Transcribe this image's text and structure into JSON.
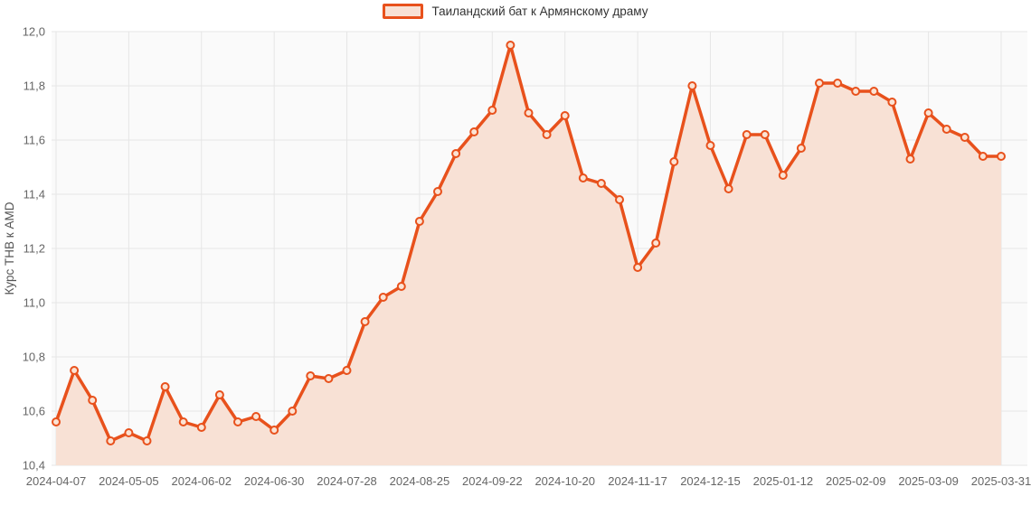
{
  "legend": {
    "label": "Таиландский бат к Армянскому драму"
  },
  "chart_data": {
    "type": "area",
    "title": "",
    "xlabel": "",
    "ylabel": "Курс THB к AMD",
    "series_name": "Таиландский бат к Армянскому драму",
    "ylim": [
      10.4,
      12.0
    ],
    "grid": true,
    "legend_position": "top-center",
    "decimal_separator": ",",
    "y_tick_values": [
      10.4,
      10.6,
      10.8,
      11.0,
      11.2,
      11.4,
      11.6,
      11.8,
      12.0
    ],
    "y_tick_labels": [
      "10,4",
      "10,6",
      "10,8",
      "11,0",
      "11,2",
      "11,4",
      "11,6",
      "11,8",
      "12,0"
    ],
    "x_tick_indices": [
      0,
      4,
      8,
      12,
      16,
      20,
      24,
      28,
      32,
      36,
      40,
      44,
      48,
      52
    ],
    "x_tick_labels": [
      "2024-04-07",
      "2024-05-05",
      "2024-06-02",
      "2024-06-30",
      "2024-07-28",
      "2024-08-25",
      "2024-09-22",
      "2024-10-20",
      "2024-11-17",
      "2024-12-15",
      "2025-01-12",
      "2025-02-09",
      "2025-03-09",
      "2025-03-31"
    ],
    "x": [
      "2024-04-07",
      "2024-04-14",
      "2024-04-21",
      "2024-04-28",
      "2024-05-05",
      "2024-05-12",
      "2024-05-19",
      "2024-05-26",
      "2024-06-02",
      "2024-06-09",
      "2024-06-16",
      "2024-06-23",
      "2024-06-30",
      "2024-07-07",
      "2024-07-14",
      "2024-07-21",
      "2024-07-28",
      "2024-08-04",
      "2024-08-11",
      "2024-08-18",
      "2024-08-25",
      "2024-09-01",
      "2024-09-08",
      "2024-09-15",
      "2024-09-22",
      "2024-09-29",
      "2024-10-06",
      "2024-10-13",
      "2024-10-20",
      "2024-10-27",
      "2024-11-03",
      "2024-11-10",
      "2024-11-17",
      "2024-11-24",
      "2024-12-01",
      "2024-12-08",
      "2024-12-15",
      "2024-12-22",
      "2024-12-29",
      "2025-01-05",
      "2025-01-12",
      "2025-01-19",
      "2025-01-26",
      "2025-02-02",
      "2025-02-09",
      "2025-02-16",
      "2025-02-23",
      "2025-03-02",
      "2025-03-09",
      "2025-03-16",
      "2025-03-23",
      "2025-03-30",
      "2025-03-31"
    ],
    "values": [
      10.56,
      10.75,
      10.64,
      10.49,
      10.52,
      10.49,
      10.69,
      10.56,
      10.54,
      10.66,
      10.56,
      10.58,
      10.53,
      10.6,
      10.73,
      10.72,
      10.75,
      10.93,
      11.02,
      11.06,
      11.3,
      11.41,
      11.55,
      11.63,
      11.71,
      11.95,
      11.7,
      11.62,
      11.69,
      11.46,
      11.44,
      11.38,
      11.13,
      11.22,
      11.52,
      11.8,
      11.58,
      11.42,
      11.62,
      11.62,
      11.47,
      11.57,
      11.81,
      11.81,
      11.78,
      11.78,
      11.74,
      11.53,
      11.7,
      11.64,
      11.61,
      11.54,
      11.54
    ],
    "colors": {
      "line": "#e8511c",
      "area_fill": "#f8e1d5",
      "marker_fill": "#fbe3d4",
      "grid": "#e6e6e6",
      "plot_background": "#fafafa",
      "tick_text": "#666666",
      "axis_title_text": "#555555",
      "legend_text": "#333333"
    }
  }
}
